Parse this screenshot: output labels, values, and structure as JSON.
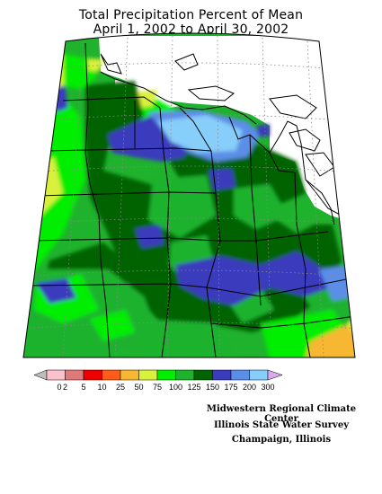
{
  "title": {
    "line1": "Total Precipitation Percent of Mean",
    "line2": "April 1, 2002 to April 30, 2002"
  },
  "legend": {
    "labels": [
      "0",
      "2",
      "5",
      "10",
      "25",
      "50",
      "75",
      "100",
      "125",
      "150",
      "175",
      "200",
      "300"
    ],
    "colors": [
      "#bdbdbd",
      "#fbc0cb",
      "#e07a7a",
      "#ee0000",
      "#ff5c1a",
      "#f7b733",
      "#d9f03c",
      "#00ee00",
      "#1fb22d",
      "#006400",
      "#3b3bbd",
      "#5b8ee8",
      "#87cefa",
      "#d8a8f0"
    ]
  },
  "credits": {
    "line1": "Midwestern Regional Climate Center",
    "line2": "Illinois State Water Survey",
    "line3": "Champaign, Illinois"
  }
}
